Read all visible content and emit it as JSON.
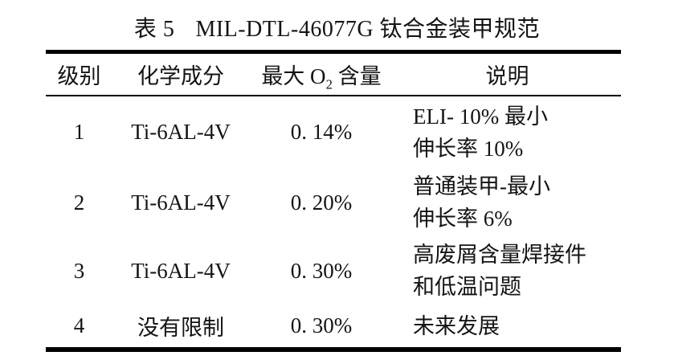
{
  "page": {
    "background": "#ffffff",
    "text_color": "#141414",
    "rule_color": "#000000"
  },
  "title": {
    "label": "表 5",
    "text": "MIL-DTL-46077G 钛合金装甲规范"
  },
  "table": {
    "headers": {
      "grade": "级别",
      "composition": "化学成分",
      "max_o2_prefix": "最大 O",
      "max_o2_sub": "2",
      "max_o2_suffix": " 含量",
      "description": "说明"
    },
    "rows": [
      {
        "grade": "1",
        "composition": "Ti-6AL-4V",
        "max_o2": "0. 14%",
        "desc": [
          "ELI- 10%  最小",
          "伸长率 10%"
        ]
      },
      {
        "grade": "2",
        "composition": "Ti-6AL-4V",
        "max_o2": "0. 20%",
        "desc": [
          "普通装甲-最小",
          "伸长率 6%"
        ]
      },
      {
        "grade": "3",
        "composition": "Ti-6AL-4V",
        "max_o2": "0. 30%",
        "desc": [
          "高废屑含量焊接件",
          "和低温问题"
        ]
      },
      {
        "grade": "4",
        "composition": "没有限制",
        "max_o2": "0. 30%",
        "desc": [
          "未来发展"
        ]
      }
    ]
  }
}
